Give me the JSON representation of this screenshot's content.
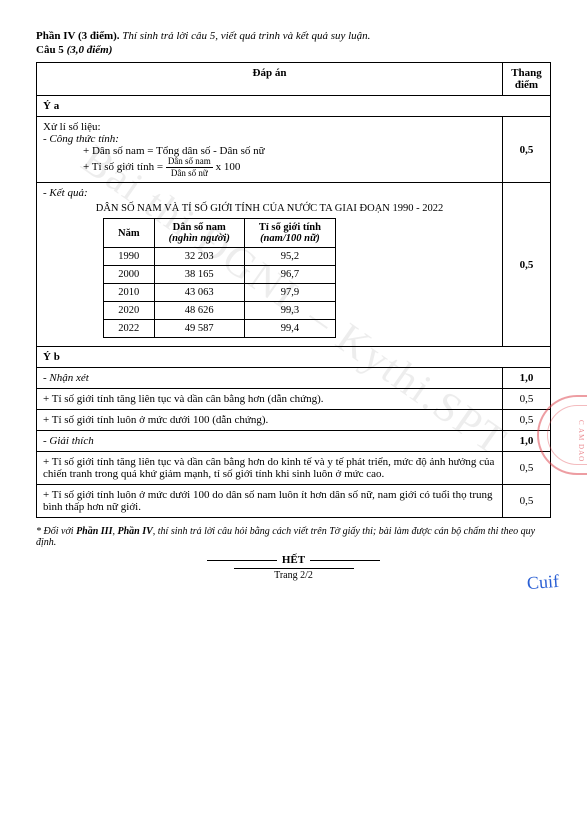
{
  "header": {
    "line1_bold": "Phần IV (3 điểm).",
    "line1_rest": " Thí sinh trả lời câu 5, viết quá trình và kết quả suy luận.",
    "line2_bold": "Câu 5 ",
    "line2_italic": "(3,0 điểm)"
  },
  "table": {
    "col_answer": "Đáp án",
    "col_score": "Thang điểm",
    "y_a": "Ý a",
    "sec1": {
      "l1": "Xử lí số liệu:",
      "l2": "- Công thức tính:",
      "l3": "+ Dân số nam = Tổng dân số - Dân số nữ",
      "l4a": "+ Tỉ số giới tính = ",
      "frac_num": "Dân số nam",
      "frac_den": "Dân số nữ",
      "l4b": " x 100",
      "score": "0,5"
    },
    "sec2": {
      "l1": "- Kết quả:",
      "title": "DÂN SỐ NAM VÀ TỈ SỐ GIỚI TÍNH CỦA NƯỚC TA GIAI ĐOẠN 1990 - 2022",
      "h1": "Năm",
      "h2": "Dân số nam",
      "h2_sub": "(nghìn người)",
      "h3": "Tỉ số giới tính",
      "h3_sub": "(nam/100 nữ)",
      "rows": [
        {
          "y": "1990",
          "p": "32 203",
          "r": "95,2"
        },
        {
          "y": "2000",
          "p": "38 165",
          "r": "96,7"
        },
        {
          "y": "2010",
          "p": "43 063",
          "r": "97,9"
        },
        {
          "y": "2020",
          "p": "48 626",
          "r": "99,3"
        },
        {
          "y": "2022",
          "p": "49 587",
          "r": "99,4"
        }
      ],
      "score": "0,5"
    },
    "y_b": "Ý b",
    "nhanxet": "- Nhận xét",
    "nhanxet_score": "1,0",
    "nx1": "+ Tỉ số giới tính tăng liên tục và dần cân bằng hơn (dẫn chứng).",
    "nx1_score": "0,5",
    "nx2": "+ Tỉ số giới tính luôn ở mức dưới 100 (dẫn chứng).",
    "nx2_score": "0,5",
    "giaithich": "- Giải thích",
    "giaithich_score": "1,0",
    "gt1": "+ Tỉ số giới tính tăng liên tục và dần cân bằng hơn do kinh tế và y tế phát triển, mức độ ảnh hưởng của chiến tranh trong quá khứ giảm mạnh, tỉ số giới tính khi sinh luôn ở mức cao.",
    "gt1_score": "0,5",
    "gt2": "+ Tỉ số giới tính luôn ở mức dưới 100 do dân số nam luôn ít hơn dân số nữ, nam giới có tuổi thọ trung bình thấp hơn nữ giới.",
    "gt2_score": "0,5"
  },
  "footnote": "* Đối với Phần III, Phần IV, thí sinh trả lời câu hỏi bằng cách viết trên Tờ giấy thi; bài làm được cán bộ chấm thi theo quy định.",
  "footnote_bold1": "Phần III",
  "footnote_bold2": "Phần IV",
  "het": "HẾT",
  "page": "Trang 2/2",
  "watermark": "Bài thi ĐGNL – Kythi.SPT",
  "stamp_text": "C AM DAO",
  "signature": "Cuif"
}
